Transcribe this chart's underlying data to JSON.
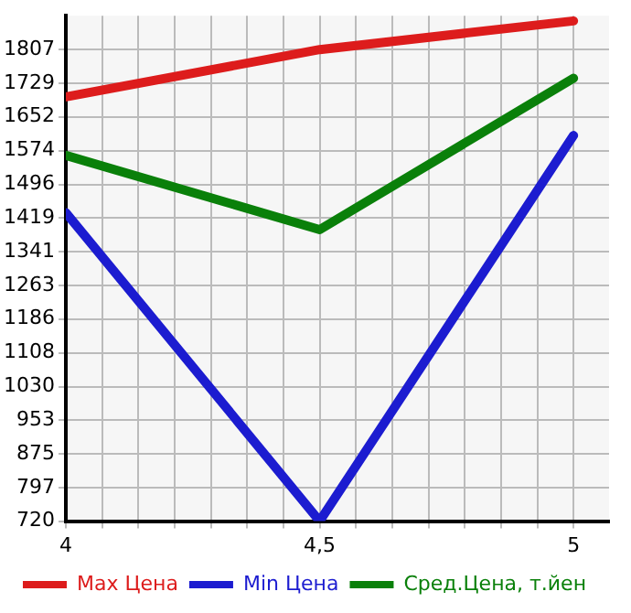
{
  "chart_data": {
    "type": "line",
    "x": [
      4,
      4.5,
      5
    ],
    "xlim": [
      4,
      5.07
    ],
    "xticks": [
      {
        "value": 4,
        "label": "4"
      },
      {
        "value": 4.0714,
        "label": null
      },
      {
        "value": 4.1429,
        "label": null
      },
      {
        "value": 4.2143,
        "label": null
      },
      {
        "value": 4.2857,
        "label": null
      },
      {
        "value": 4.3571,
        "label": null
      },
      {
        "value": 4.4286,
        "label": null
      },
      {
        "value": 4.5,
        "label": "4,5"
      },
      {
        "value": 4.5714,
        "label": null
      },
      {
        "value": 4.6429,
        "label": null
      },
      {
        "value": 4.7143,
        "label": null
      },
      {
        "value": 4.7857,
        "label": null
      },
      {
        "value": 4.8571,
        "label": null
      },
      {
        "value": 4.9286,
        "label": null
      },
      {
        "value": 5,
        "label": "5"
      }
    ],
    "ylim": [
      720,
      1885
    ],
    "yticks": [
      720,
      797,
      875,
      953,
      1030,
      1108,
      1186,
      1263,
      1341,
      1419,
      1496,
      1574,
      1652,
      1729,
      1807
    ],
    "series": [
      {
        "name": "Max Цена",
        "color": "#dd1c1c",
        "values": [
          1698,
          1807,
          1873
        ]
      },
      {
        "name": "Min Цена",
        "color": "#1c1cd0",
        "values": [
          1431,
          720,
          1609
        ]
      },
      {
        "name": "Сред.Цена, т.йен",
        "color": "#0a800a",
        "values": [
          1563,
          1392,
          1741
        ]
      }
    ],
    "grid": true,
    "legend": "bottom",
    "marker": "none",
    "line_style": "solid"
  }
}
